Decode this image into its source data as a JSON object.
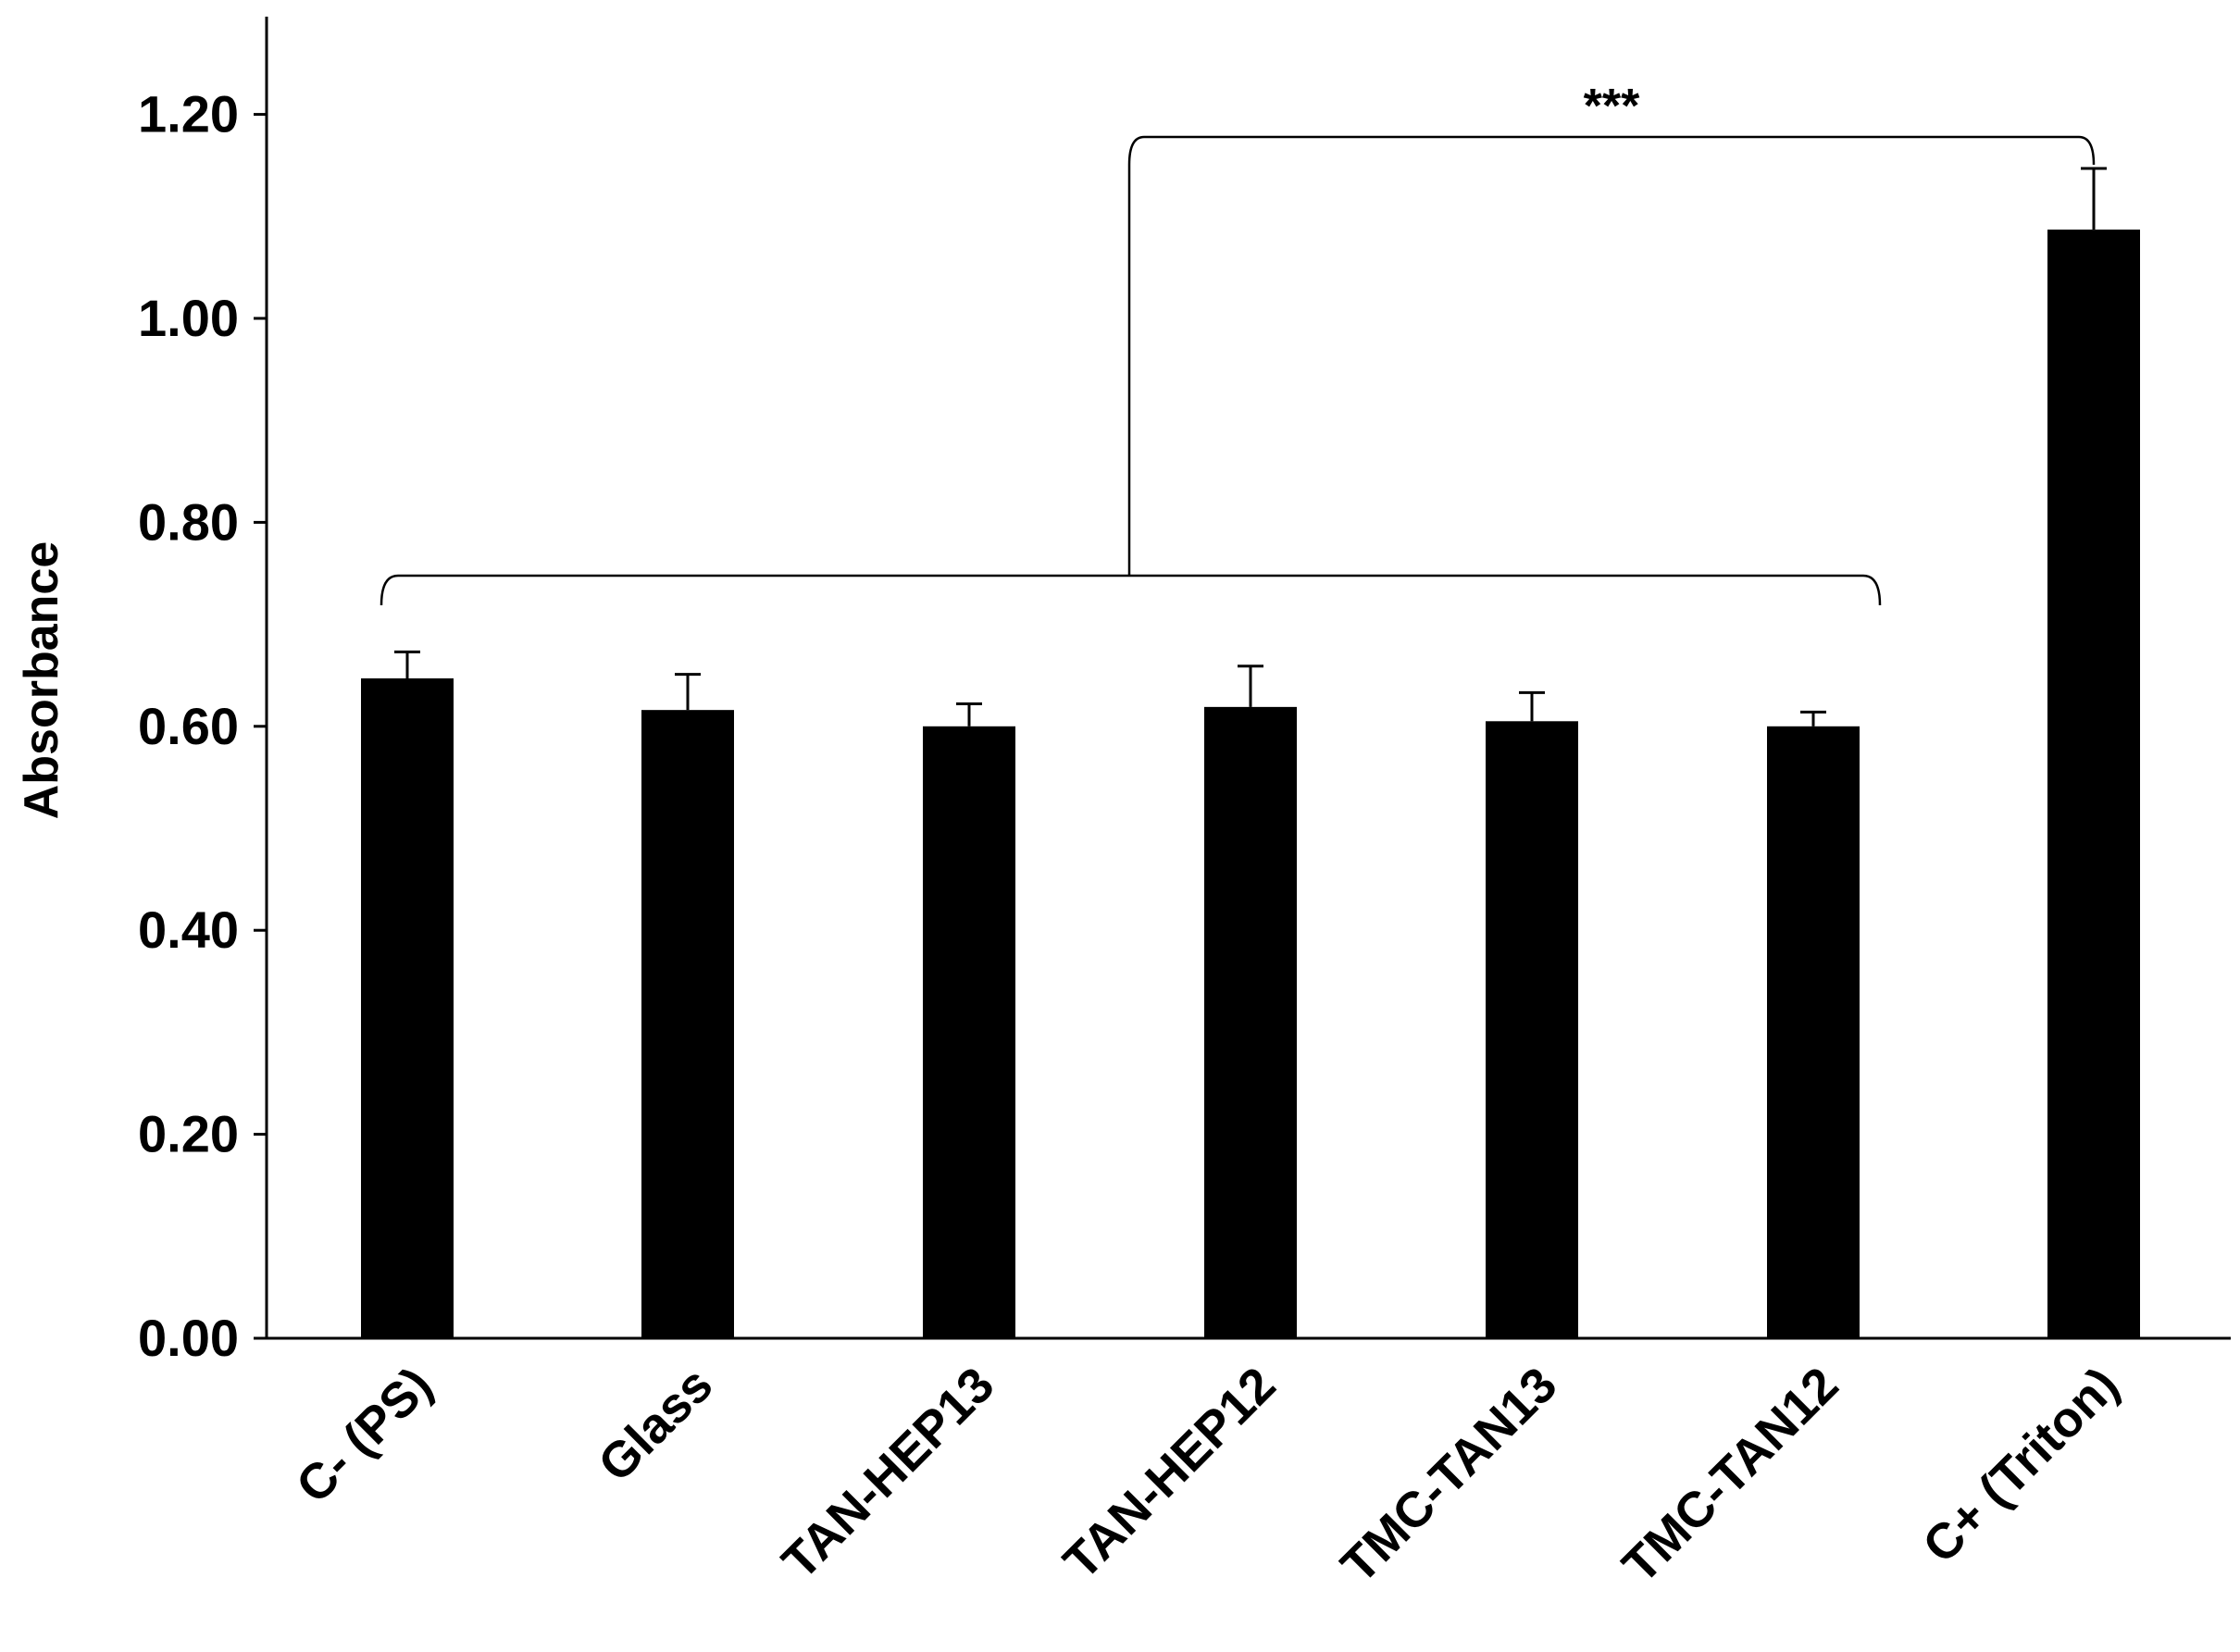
{
  "chart_data": {
    "type": "bar",
    "title": "",
    "xlabel": "",
    "ylabel": "Absorbance",
    "ylim": [
      0,
      1.3
    ],
    "yticks": [
      "0.00",
      "0.20",
      "0.40",
      "0.60",
      "0.80",
      "1.00",
      "1.20"
    ],
    "ytick_values": [
      0,
      0.2,
      0.4,
      0.6,
      0.8,
      1.0,
      1.2
    ],
    "categories": [
      "C- (PS)",
      "Glass",
      "TAN-HEP13",
      "TAN-HEP12",
      "TMC-TAN13",
      "TMC-TAN12",
      "C+ (Triton)"
    ],
    "values": [
      0.647,
      0.616,
      0.6,
      0.619,
      0.605,
      0.6,
      1.087
    ],
    "errors": [
      0.026,
      0.035,
      0.022,
      0.04,
      0.028,
      0.014,
      0.06
    ],
    "bar_color": "#000000",
    "grid": false,
    "legend": "none",
    "annotations": [
      {
        "text": "***",
        "type": "bracket",
        "from_group": [
          0,
          5
        ],
        "to": 6
      }
    ]
  }
}
